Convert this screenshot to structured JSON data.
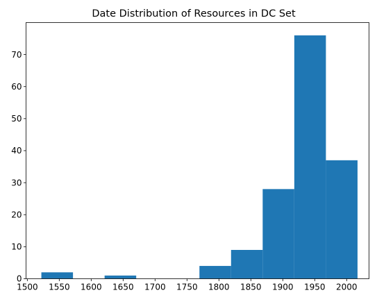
{
  "chart_data": {
    "type": "bar",
    "title": "Date Distribution of Resources in DC Set",
    "xlabel": "",
    "ylabel": "",
    "bar_color": "#1f77b4",
    "xlim": [
      1498,
      2035
    ],
    "ylim": [
      0,
      80
    ],
    "bins": [
      {
        "x0": 1522,
        "x1": 1571.5,
        "count": 2
      },
      {
        "x0": 1571.5,
        "x1": 1621,
        "count": 0
      },
      {
        "x0": 1621,
        "x1": 1670.5,
        "count": 1
      },
      {
        "x0": 1670.5,
        "x1": 1720,
        "count": 0
      },
      {
        "x0": 1720,
        "x1": 1769.5,
        "count": 0
      },
      {
        "x0": 1769.5,
        "x1": 1819,
        "count": 4
      },
      {
        "x0": 1819,
        "x1": 1868.5,
        "count": 9
      },
      {
        "x0": 1868.5,
        "x1": 1918,
        "count": 28
      },
      {
        "x0": 1918,
        "x1": 1967.5,
        "count": 76
      },
      {
        "x0": 1967.5,
        "x1": 2017,
        "count": 37
      }
    ],
    "xticks": [
      "1500",
      "1550",
      "1600",
      "1650",
      "1700",
      "1750",
      "1800",
      "1850",
      "1900",
      "1950",
      "2000"
    ],
    "yticks": [
      "0",
      "10",
      "20",
      "30",
      "40",
      "50",
      "60",
      "70"
    ],
    "grid": false,
    "legend": "none"
  }
}
